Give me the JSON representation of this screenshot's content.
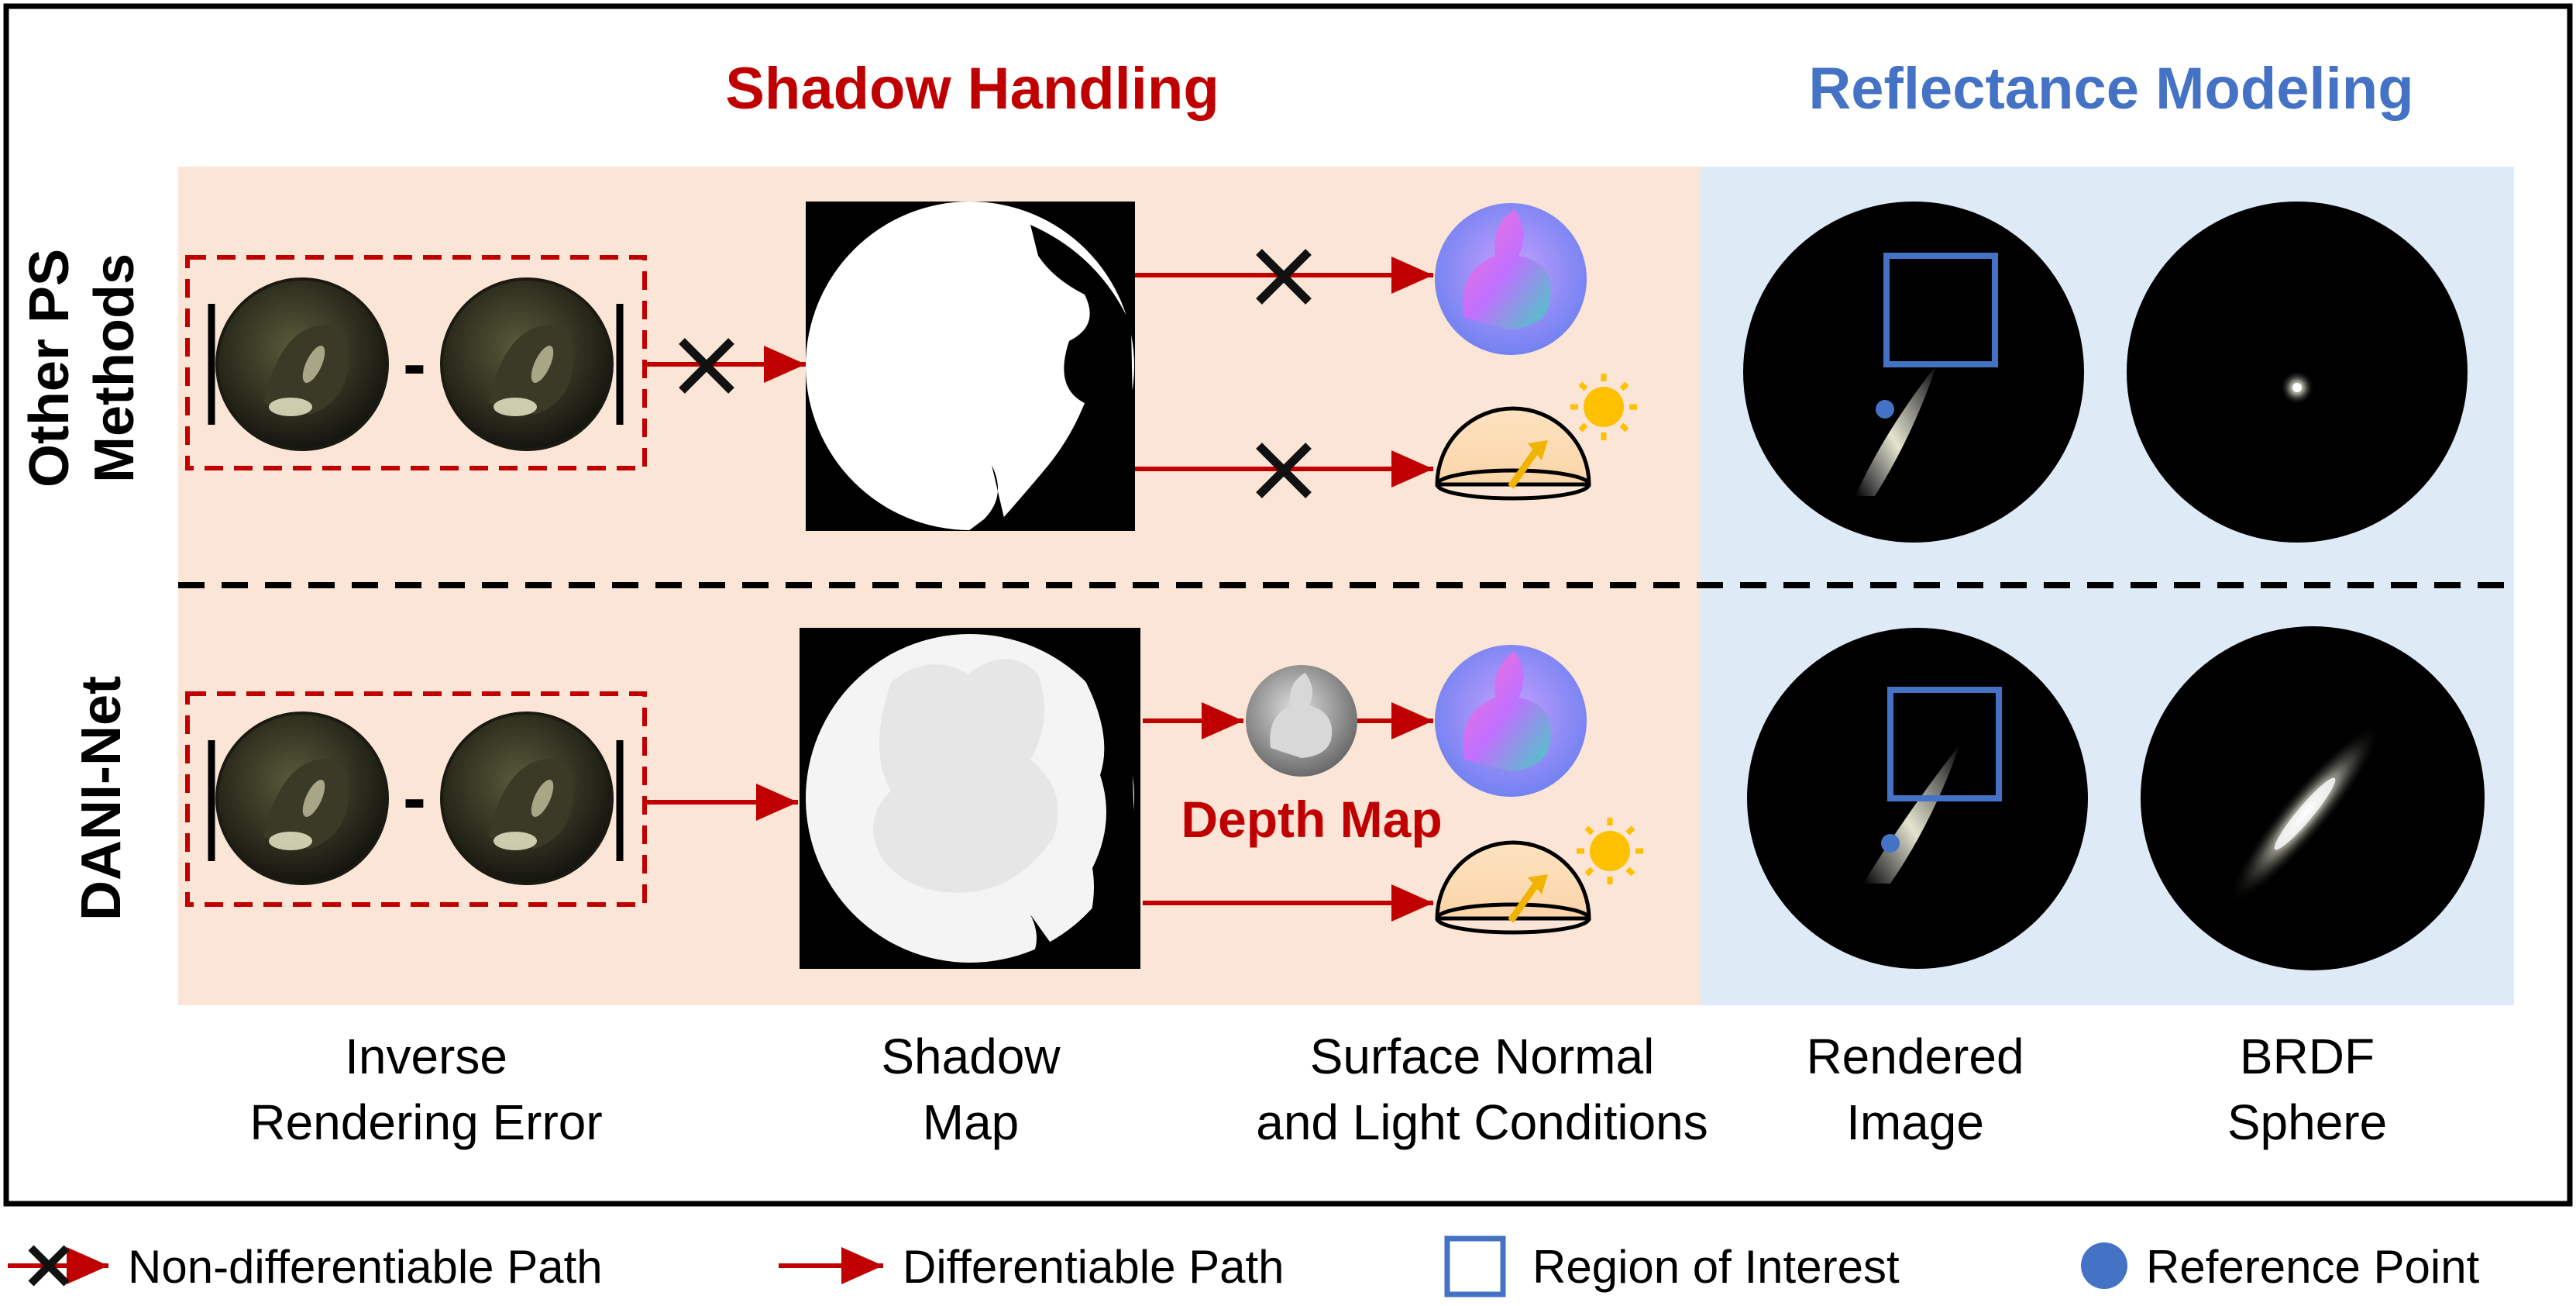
{
  "titles": {
    "shadow_handling": "Shadow Handling",
    "reflectance_modeling": "Reflectance Modeling"
  },
  "rows": {
    "top": {
      "label_line1": "Other PS",
      "label_line2": "Methods"
    },
    "bottom": {
      "label": "DANI-Net"
    }
  },
  "columns": {
    "inverse_rendering_error": [
      "Inverse",
      "Rendering Error"
    ],
    "shadow_map": [
      "Shadow",
      "Map"
    ],
    "surface_normal_light": [
      "Surface Normal",
      "and Light Conditions"
    ],
    "rendered_image": [
      "Rendered",
      "Image"
    ],
    "brdf_sphere": [
      "BRDF",
      "Sphere"
    ]
  },
  "depth_map_label": "Depth Map",
  "minus_sign": "-",
  "legend": {
    "non_differentiable": "Non-differentiable Path",
    "differentiable": "Differentiable Path",
    "region_of_interest": "Region of Interest",
    "reference_point": "Reference Point"
  },
  "colors": {
    "shadow_bg": "#fbe5d6",
    "reflectance_bg": "#deebf7",
    "arrow_red": "#c00000",
    "roi_blue": "#4472c4",
    "ref_point": "#4472c4"
  }
}
